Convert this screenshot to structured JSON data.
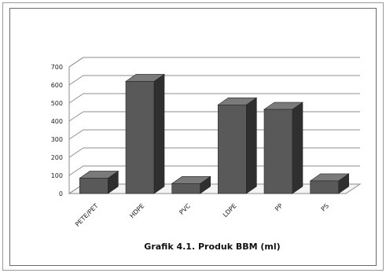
{
  "chart_data": {
    "type": "bar",
    "style": "3d-column",
    "title": "Grafik 4.1. Produk BBM (ml)",
    "categories": [
      "PETE/PET",
      "HDPE",
      "PVC",
      "LDPE",
      "PP",
      "PS"
    ],
    "values": [
      85,
      620,
      55,
      490,
      465,
      70
    ],
    "yticks": [
      0,
      100,
      200,
      300,
      400,
      500,
      600,
      700
    ],
    "ylim": [
      0,
      700
    ],
    "grid": true,
    "legend": "none",
    "bar_color": "#595959"
  }
}
